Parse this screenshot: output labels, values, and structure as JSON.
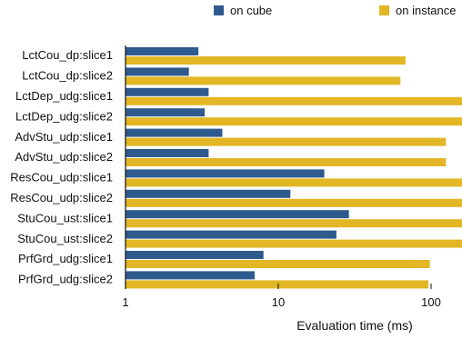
{
  "chart_data": {
    "type": "bar",
    "orientation": "horizontal",
    "xscale": "log",
    "xlim": [
      1,
      200
    ],
    "xlabel": "Evaluation time (ms)",
    "xticks": [
      1,
      10,
      100
    ],
    "xtick_labels": [
      "1",
      "10",
      "100"
    ],
    "legend_position": "top",
    "categories": [
      "LctCou_dp:slice1",
      "LctCou_dp:slice2",
      "LctDep_udg:slice1",
      "LctDep_udg:slice2",
      "AdvStu_udp:slice1",
      "AdvStu_udp:slice2",
      "ResCou_udp:slice1",
      "ResCou_udp:slice2",
      "StuCou_ust:slice1",
      "StuCou_ust:slice2",
      "PrfGrd_udg:slice1",
      "PrfGrd_udg:slice2"
    ],
    "series": [
      {
        "name": "on cube",
        "color": "#2f5a8e",
        "values": [
          3.0,
          2.6,
          3.5,
          3.3,
          4.3,
          3.5,
          20,
          12,
          29,
          24,
          8.0,
          7.0
        ]
      },
      {
        "name": "on instance",
        "color": "#e2b625",
        "values": [
          68,
          63,
          200,
          200,
          125,
          125,
          200,
          200,
          200,
          200,
          98,
          96
        ]
      }
    ]
  }
}
